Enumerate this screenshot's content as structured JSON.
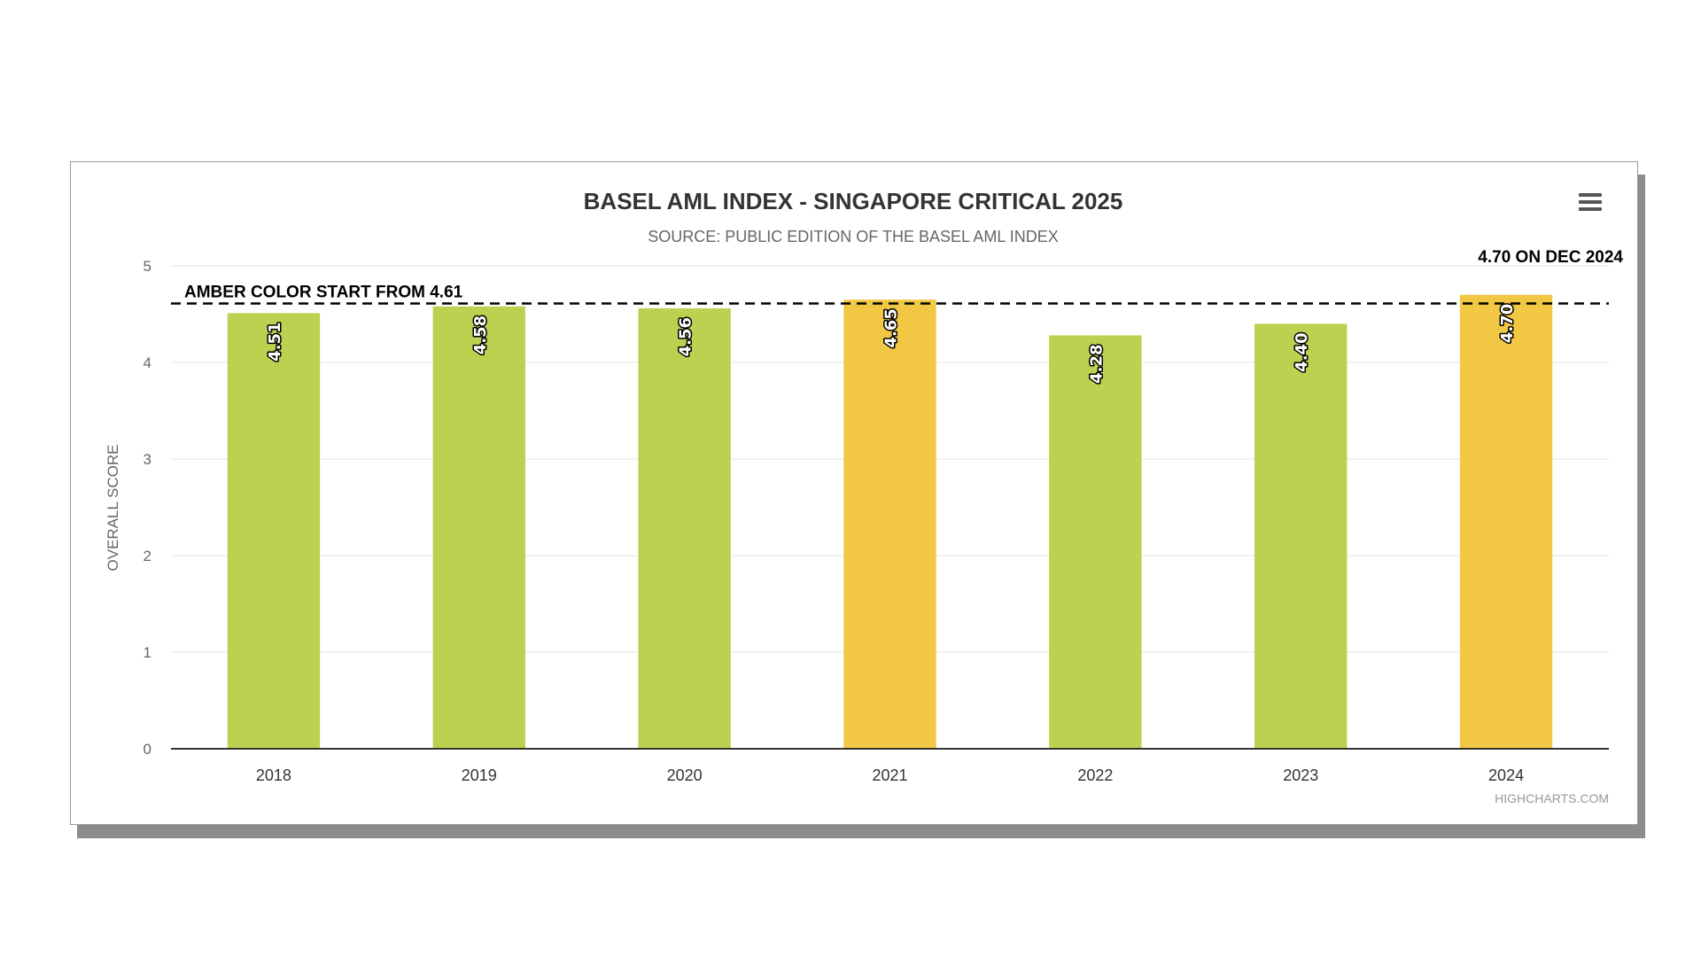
{
  "chart_data": {
    "type": "bar",
    "title": "BASEL AML INDEX - SINGAPORE CRITICAL 2025",
    "subtitle": "SOURCE: PUBLIC EDITION OF THE BASEL AML INDEX",
    "ylabel": "OVERALL SCORE",
    "xlabel": "",
    "ylim": [
      0,
      5
    ],
    "yticks": [
      "0",
      "1",
      "2",
      "3",
      "4",
      "5"
    ],
    "categories": [
      "2018",
      "2019",
      "2020",
      "2021",
      "2022",
      "2023",
      "2024"
    ],
    "values": [
      4.51,
      4.58,
      4.56,
      4.65,
      4.28,
      4.4,
      4.7
    ],
    "data_labels": [
      "4.51",
      "4.58",
      "4.56",
      "4.65",
      "4.28",
      "4.40",
      "4.70"
    ],
    "threshold": {
      "value": 4.61,
      "label": "AMBER COLOR START FROM 4.61",
      "style": "dashed",
      "color": "#000000"
    },
    "annotation": "4.70 ON DEC 2024",
    "colors": {
      "below_threshold": "#bcd14f",
      "above_threshold": "#f2c744"
    },
    "grid": true,
    "legend": "none",
    "credits": "HIGHCHARTS.COM"
  },
  "menu": {
    "icon": "hamburger-menu-icon"
  }
}
